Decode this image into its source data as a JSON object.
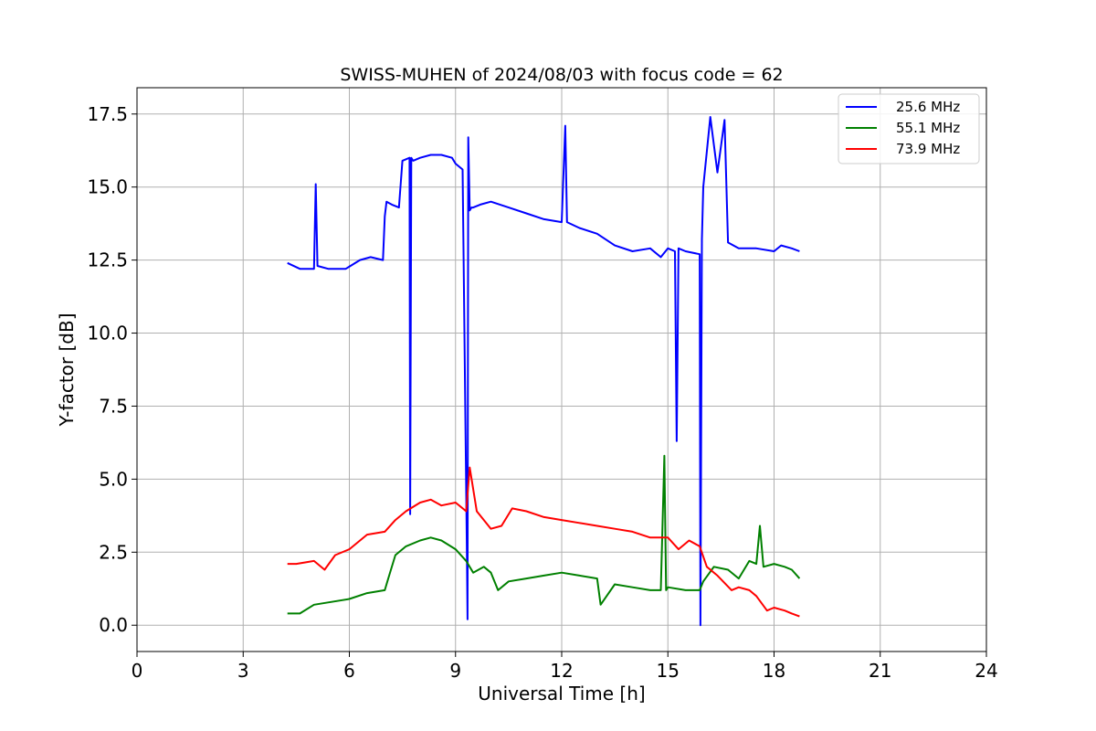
{
  "chart_data": {
    "type": "line",
    "title": "SWISS-MUHEN of 2024/08/03 with focus code = 62",
    "xlabel": "Universal Time [h]",
    "ylabel": "Y-factor [dB]",
    "xlim": [
      0,
      24
    ],
    "ylim": [
      -0.9,
      18.4
    ],
    "xticks": [
      0,
      3,
      6,
      9,
      12,
      15,
      18,
      21,
      24
    ],
    "xtick_labels": [
      "0",
      "3",
      "6",
      "9",
      "12",
      "15",
      "18",
      "21",
      "24"
    ],
    "yticks": [
      0.0,
      2.5,
      5.0,
      7.5,
      10.0,
      12.5,
      15.0,
      17.5
    ],
    "ytick_labels": [
      "0.0",
      "2.5",
      "5.0",
      "7.5",
      "10.0",
      "12.5",
      "15.0",
      "17.5"
    ],
    "grid": true,
    "legend_position": "top-right",
    "series": [
      {
        "name": "25.6 MHz",
        "color": "#0000ff",
        "x": [
          4.25,
          4.6,
          5.0,
          5.05,
          5.1,
          5.4,
          5.9,
          6.3,
          6.6,
          6.95,
          7.0,
          7.05,
          7.2,
          7.4,
          7.5,
          7.7,
          7.72,
          7.75,
          7.8,
          8.0,
          8.3,
          8.6,
          8.9,
          9.0,
          9.2,
          9.32,
          9.34,
          9.36,
          9.4,
          9.45,
          9.5,
          9.7,
          10.0,
          10.5,
          11.0,
          11.5,
          12.0,
          12.1,
          12.15,
          12.5,
          13.0,
          13.5,
          14.0,
          14.5,
          14.8,
          15.0,
          15.2,
          15.25,
          15.3,
          15.5,
          15.9,
          15.92,
          15.96,
          16.0,
          16.2,
          16.4,
          16.6,
          16.7,
          17.0,
          17.5,
          18.0,
          18.2,
          18.5,
          18.72
        ],
        "y": [
          12.4,
          12.2,
          12.2,
          15.1,
          12.3,
          12.2,
          12.2,
          12.5,
          12.6,
          12.5,
          14.0,
          14.5,
          14.4,
          14.3,
          15.9,
          16.0,
          3.8,
          16.0,
          15.9,
          16.0,
          16.1,
          16.1,
          16.0,
          15.8,
          15.6,
          2.5,
          0.2,
          16.7,
          14.2,
          14.3,
          14.3,
          14.4,
          14.5,
          14.3,
          14.1,
          13.9,
          13.8,
          17.1,
          13.8,
          13.6,
          13.4,
          13.0,
          12.8,
          12.9,
          12.6,
          12.9,
          12.8,
          6.3,
          12.9,
          12.8,
          12.7,
          0.0,
          13.2,
          15.0,
          17.4,
          15.5,
          17.3,
          13.1,
          12.9,
          12.9,
          12.8,
          13.0,
          12.9,
          12.8
        ]
      },
      {
        "name": "55.1 MHz",
        "color": "#008000",
        "x": [
          4.25,
          4.6,
          5.0,
          5.5,
          6.0,
          6.5,
          7.0,
          7.1,
          7.3,
          7.6,
          8.0,
          8.3,
          8.6,
          9.0,
          9.3,
          9.5,
          9.8,
          10.0,
          10.2,
          10.5,
          11.0,
          11.5,
          12.0,
          12.5,
          13.0,
          13.1,
          13.5,
          14.0,
          14.5,
          14.8,
          14.9,
          14.95,
          15.0,
          15.5,
          15.9,
          16.0,
          16.3,
          16.7,
          17.0,
          17.3,
          17.5,
          17.6,
          17.7,
          18.0,
          18.3,
          18.5,
          18.72
        ],
        "y": [
          0.4,
          0.4,
          0.7,
          0.8,
          0.9,
          1.1,
          1.2,
          1.6,
          2.4,
          2.7,
          2.9,
          3.0,
          2.9,
          2.6,
          2.2,
          1.8,
          2.0,
          1.8,
          1.2,
          1.5,
          1.6,
          1.7,
          1.8,
          1.7,
          1.6,
          0.7,
          1.4,
          1.3,
          1.2,
          1.2,
          5.8,
          1.2,
          1.3,
          1.2,
          1.2,
          1.5,
          2.0,
          1.9,
          1.6,
          2.2,
          2.1,
          3.4,
          2.0,
          2.1,
          2.0,
          1.9,
          1.6
        ]
      },
      {
        "name": "73.9 MHz",
        "color": "#ff0000",
        "x": [
          4.25,
          4.5,
          5.0,
          5.3,
          5.6,
          6.0,
          6.5,
          7.0,
          7.3,
          7.6,
          8.0,
          8.3,
          8.6,
          9.0,
          9.3,
          9.4,
          9.6,
          10.0,
          10.3,
          10.6,
          11.0,
          11.5,
          12.0,
          12.5,
          13.0,
          13.5,
          14.0,
          14.5,
          15.0,
          15.3,
          15.6,
          15.9,
          16.1,
          16.4,
          16.8,
          17.0,
          17.3,
          17.5,
          17.8,
          18.0,
          18.3,
          18.5,
          18.72
        ],
        "y": [
          2.1,
          2.1,
          2.2,
          1.9,
          2.4,
          2.6,
          3.1,
          3.2,
          3.6,
          3.9,
          4.2,
          4.3,
          4.1,
          4.2,
          3.9,
          5.4,
          3.9,
          3.3,
          3.4,
          4.0,
          3.9,
          3.7,
          3.6,
          3.5,
          3.4,
          3.3,
          3.2,
          3.0,
          3.0,
          2.6,
          2.9,
          2.7,
          2.0,
          1.7,
          1.2,
          1.3,
          1.2,
          1.0,
          0.5,
          0.6,
          0.5,
          0.4,
          0.3
        ]
      }
    ]
  }
}
